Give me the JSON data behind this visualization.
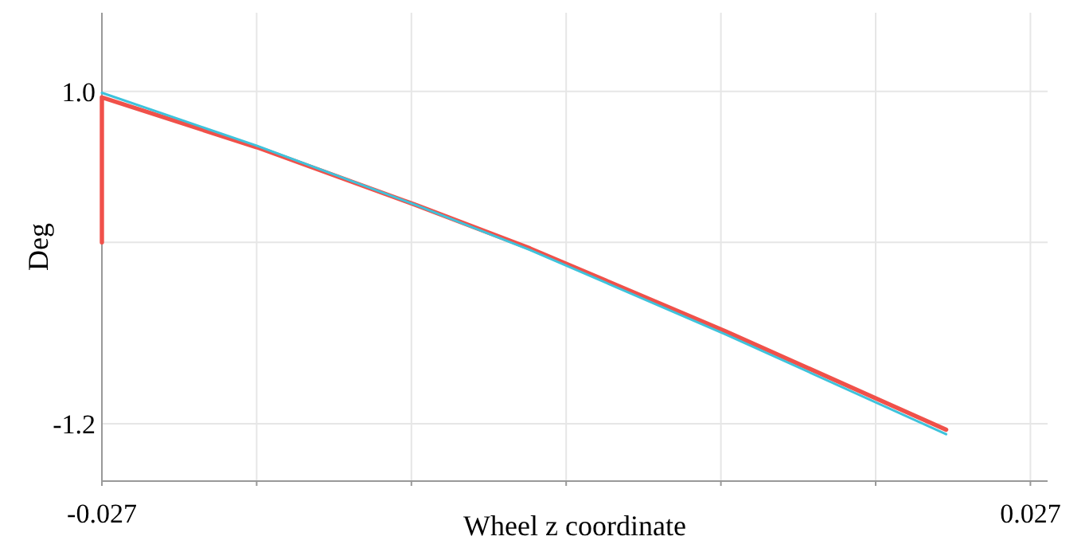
{
  "chart_data": {
    "type": "line",
    "xlabel": "Wheel z coordinate",
    "ylabel": "Deg",
    "xlim": [
      -0.027,
      0.028
    ],
    "ylim": [
      -1.58,
      1.52
    ],
    "xticks": [
      -0.027,
      {
        "value": -0.018,
        "label": null
      },
      {
        "value": -0.009,
        "label": null
      },
      {
        "value": 0,
        "label": null
      },
      {
        "value": 0.009,
        "label": null
      },
      {
        "value": 0.018,
        "label": null
      },
      0.027
    ],
    "yticks": [
      {
        "value": 1.0,
        "label": "1.0"
      },
      {
        "value": 0,
        "label": null
      },
      -1.2
    ],
    "grid": true,
    "line_style": "solid",
    "marker": "none",
    "series": [
      {
        "color": "#f0514a",
        "x": [
          -0.027,
          -0.027,
          -0.018,
          -0.0088,
          -0.0021,
          0.0093,
          0.0221
        ],
        "values": [
          0,
          0.96,
          0.63,
          0.25,
          -0.04,
          -0.59,
          -1.24
        ]
      },
      {
        "color": "#3ec3dc",
        "x": [
          -0.027,
          -0.018,
          -0.0088,
          -0.0021,
          0.0093,
          0.0221
        ],
        "values": [
          0.99,
          0.64,
          0.25,
          -0.05,
          -0.61,
          -1.27
        ]
      }
    ]
  }
}
